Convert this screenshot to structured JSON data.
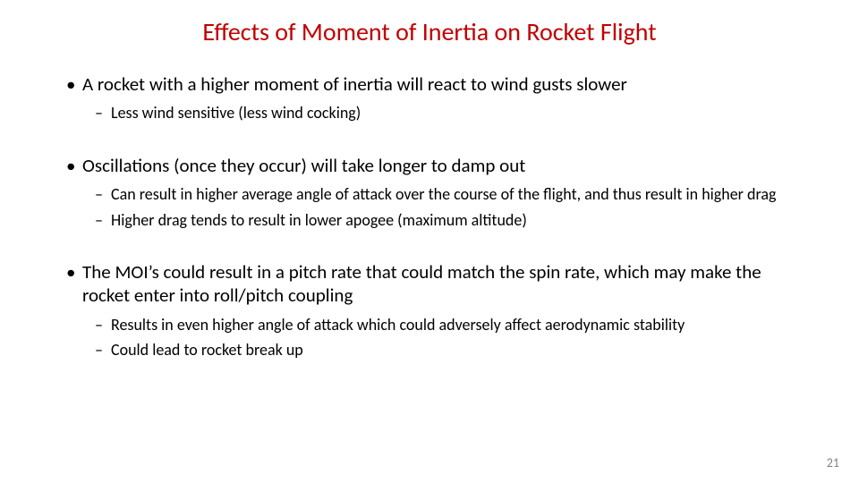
{
  "slide": {
    "title": "Effects of Moment of Inertia on Rocket Flight",
    "title_color": "#c00000",
    "background_color": "#ffffff",
    "text_color": "#000000",
    "page_number": "21",
    "page_number_color": "#808080",
    "title_fontsize": 28,
    "l1_fontsize": 21,
    "l2_fontsize": 18,
    "groups": [
      {
        "l1": "A rocket with a higher moment of inertia will react to wind gusts slower",
        "l2": [
          "Less wind sensitive (less wind cocking)"
        ]
      },
      {
        "l1": "Oscillations (once they occur) will take longer to damp out",
        "l2": [
          "Can result in higher average angle of attack over the course of the flight, and thus result in higher drag",
          "Higher drag tends to result in lower apogee (maximum altitude)"
        ]
      },
      {
        "l1": "The MOI’s could result in a pitch rate that could match the spin rate, which may make the rocket enter into roll/pitch coupling",
        "l2": [
          "Results in even higher angle of attack which could adversely affect aerodynamic stability",
          "Could lead to rocket break up"
        ]
      }
    ]
  }
}
